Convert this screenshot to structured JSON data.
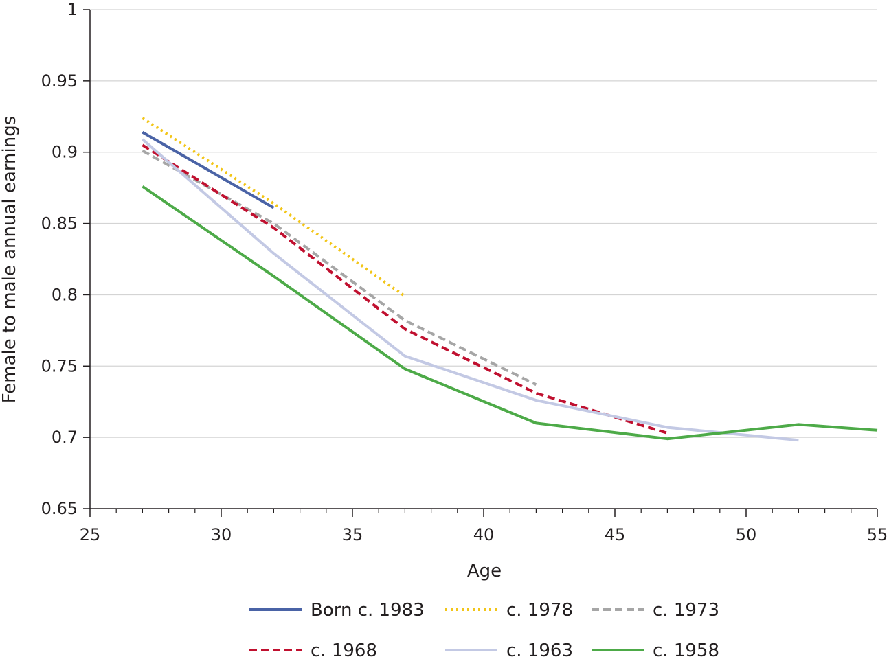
{
  "chart_data": {
    "type": "line",
    "xlabel": "Age",
    "ylabel": "Female to male annual earnings",
    "xlim": [
      25,
      55
    ],
    "ylim": [
      0.65,
      1
    ],
    "xticks": [
      "25",
      "30",
      "35",
      "40",
      "45",
      "50",
      "55"
    ],
    "yticks": [
      "0.65",
      "0.7",
      "0.75",
      "0.8",
      "0.85",
      "0.9",
      "0.95",
      "1"
    ],
    "grid": "horizontal",
    "legend_position": "bottom",
    "series": [
      {
        "name": "Born c. 1983",
        "color": "#4a63a6",
        "style": "solid",
        "points": [
          [
            27,
            0.914
          ],
          [
            32,
            0.861
          ]
        ]
      },
      {
        "name": "c. 1978",
        "color": "#f2c518",
        "style": "dotted",
        "points": [
          [
            27,
            0.924
          ],
          [
            32,
            0.864
          ],
          [
            37,
            0.799
          ]
        ]
      },
      {
        "name": "c. 1973",
        "color": "#a6a6a6",
        "style": "dashed",
        "points": [
          [
            27,
            0.901
          ],
          [
            32,
            0.85
          ],
          [
            37,
            0.782
          ],
          [
            42,
            0.737
          ]
        ]
      },
      {
        "name": "c. 1968",
        "color": "#c0102f",
        "style": "dashed",
        "points": [
          [
            27,
            0.905
          ],
          [
            32,
            0.847
          ],
          [
            37,
            0.776
          ],
          [
            42,
            0.731
          ],
          [
            47,
            0.703
          ]
        ]
      },
      {
        "name": "c. 1963",
        "color": "#c3c9e4",
        "style": "solid",
        "points": [
          [
            27,
            0.909
          ],
          [
            32,
            0.829
          ],
          [
            37,
            0.757
          ],
          [
            42,
            0.726
          ],
          [
            47,
            0.707
          ],
          [
            52,
            0.698
          ]
        ]
      },
      {
        "name": "c. 1958",
        "color": "#4daa48",
        "style": "solid",
        "points": [
          [
            27,
            0.876
          ],
          [
            32,
            0.813
          ],
          [
            37,
            0.748
          ],
          [
            42,
            0.71
          ],
          [
            47,
            0.699
          ],
          [
            52,
            0.709
          ],
          [
            55,
            0.705
          ]
        ]
      }
    ]
  }
}
